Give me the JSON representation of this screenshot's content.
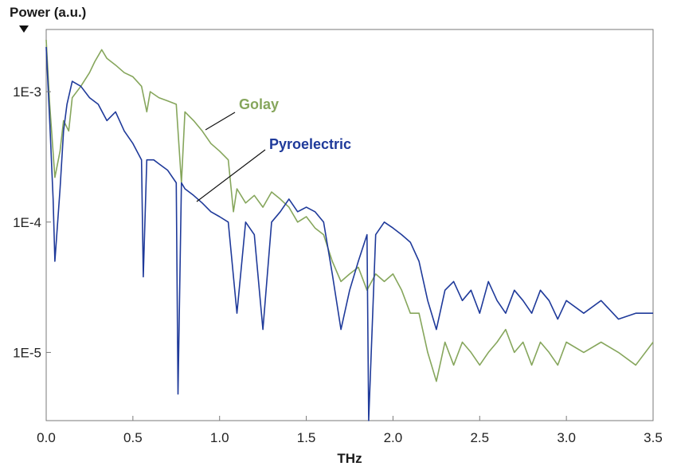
{
  "chart_data": {
    "type": "line",
    "title": "",
    "ylabel": "Power (a.u.)",
    "xlabel": "THz",
    "x_ticks": [
      "0.0",
      "0.5",
      "1.0",
      "1.5",
      "2.0",
      "2.5",
      "3.0",
      "3.5"
    ],
    "y_ticks": [
      "1E-3",
      "1E-4",
      "1E-5"
    ],
    "xlim": [
      0,
      3.5
    ],
    "ylim": [
      3e-06,
      0.003
    ],
    "y_scale": "log",
    "grid": false,
    "series": [
      {
        "name": "Golay",
        "color": "#86a65c",
        "points": [
          [
            0.0,
            0.0025
          ],
          [
            0.02,
            0.0008
          ],
          [
            0.05,
            0.00022
          ],
          [
            0.08,
            0.00035
          ],
          [
            0.1,
            0.0006
          ],
          [
            0.13,
            0.0005
          ],
          [
            0.15,
            0.0009
          ],
          [
            0.2,
            0.0011
          ],
          [
            0.25,
            0.0014
          ],
          [
            0.28,
            0.0017
          ],
          [
            0.32,
            0.0021
          ],
          [
            0.35,
            0.0018
          ],
          [
            0.4,
            0.0016
          ],
          [
            0.45,
            0.0014
          ],
          [
            0.5,
            0.0013
          ],
          [
            0.55,
            0.0011
          ],
          [
            0.58,
            0.0007
          ],
          [
            0.6,
            0.001
          ],
          [
            0.65,
            0.0009
          ],
          [
            0.7,
            0.00085
          ],
          [
            0.75,
            0.0008
          ],
          [
            0.78,
            0.0002
          ],
          [
            0.8,
            0.0007
          ],
          [
            0.85,
            0.0006
          ],
          [
            0.9,
            0.0005
          ],
          [
            0.95,
            0.0004
          ],
          [
            1.0,
            0.00035
          ],
          [
            1.05,
            0.0003
          ],
          [
            1.08,
            0.00012
          ],
          [
            1.1,
            0.00018
          ],
          [
            1.15,
            0.00014
          ],
          [
            1.2,
            0.00016
          ],
          [
            1.25,
            0.00013
          ],
          [
            1.3,
            0.00017
          ],
          [
            1.35,
            0.00015
          ],
          [
            1.4,
            0.00013
          ],
          [
            1.45,
            0.0001
          ],
          [
            1.5,
            0.00011
          ],
          [
            1.55,
            9e-05
          ],
          [
            1.6,
            8e-05
          ],
          [
            1.65,
            5e-05
          ],
          [
            1.7,
            3.5e-05
          ],
          [
            1.75,
            4e-05
          ],
          [
            1.8,
            4.5e-05
          ],
          [
            1.85,
            3e-05
          ],
          [
            1.9,
            4e-05
          ],
          [
            1.95,
            3.5e-05
          ],
          [
            2.0,
            4e-05
          ],
          [
            2.05,
            3e-05
          ],
          [
            2.1,
            2e-05
          ],
          [
            2.15,
            2e-05
          ],
          [
            2.2,
            1e-05
          ],
          [
            2.25,
            6e-06
          ],
          [
            2.3,
            1.2e-05
          ],
          [
            2.35,
            8e-06
          ],
          [
            2.4,
            1.2e-05
          ],
          [
            2.45,
            1e-05
          ],
          [
            2.5,
            8e-06
          ],
          [
            2.55,
            1e-05
          ],
          [
            2.6,
            1.2e-05
          ],
          [
            2.65,
            1.5e-05
          ],
          [
            2.7,
            1e-05
          ],
          [
            2.75,
            1.2e-05
          ],
          [
            2.8,
            8e-06
          ],
          [
            2.85,
            1.2e-05
          ],
          [
            2.9,
            1e-05
          ],
          [
            2.95,
            8e-06
          ],
          [
            3.0,
            1.2e-05
          ],
          [
            3.1,
            1e-05
          ],
          [
            3.2,
            1.2e-05
          ],
          [
            3.3,
            1e-05
          ],
          [
            3.4,
            8e-06
          ],
          [
            3.5,
            1.2e-05
          ]
        ]
      },
      {
        "name": "Pyroelectric",
        "color": "#1f3a9a",
        "points": [
          [
            0.0,
            0.0022
          ],
          [
            0.02,
            0.0006
          ],
          [
            0.04,
            0.00015
          ],
          [
            0.05,
            5e-05
          ],
          [
            0.08,
            0.00018
          ],
          [
            0.1,
            0.0005
          ],
          [
            0.12,
            0.0008
          ],
          [
            0.15,
            0.0012
          ],
          [
            0.2,
            0.0011
          ],
          [
            0.25,
            0.0009
          ],
          [
            0.3,
            0.0008
          ],
          [
            0.35,
            0.0006
          ],
          [
            0.4,
            0.0007
          ],
          [
            0.45,
            0.0005
          ],
          [
            0.5,
            0.0004
          ],
          [
            0.55,
            0.0003
          ],
          [
            0.56,
            3.8e-05
          ],
          [
            0.58,
            0.0003
          ],
          [
            0.62,
            0.0003
          ],
          [
            0.65,
            0.00028
          ],
          [
            0.7,
            0.00025
          ],
          [
            0.75,
            0.0002
          ],
          [
            0.76,
            4.8e-06
          ],
          [
            0.78,
            0.0002
          ],
          [
            0.8,
            0.00018
          ],
          [
            0.85,
            0.00016
          ],
          [
            0.9,
            0.00014
          ],
          [
            0.95,
            0.00012
          ],
          [
            1.0,
            0.00011
          ],
          [
            1.05,
            0.0001
          ],
          [
            1.1,
            2e-05
          ],
          [
            1.15,
            0.0001
          ],
          [
            1.2,
            8e-05
          ],
          [
            1.25,
            1.5e-05
          ],
          [
            1.3,
            0.0001
          ],
          [
            1.35,
            0.00012
          ],
          [
            1.4,
            0.00015
          ],
          [
            1.45,
            0.00012
          ],
          [
            1.5,
            0.00013
          ],
          [
            1.55,
            0.00012
          ],
          [
            1.6,
            0.0001
          ],
          [
            1.65,
            4e-05
          ],
          [
            1.7,
            1.5e-05
          ],
          [
            1.75,
            3e-05
          ],
          [
            1.8,
            5e-05
          ],
          [
            1.85,
            8e-05
          ],
          [
            1.86,
            3e-06
          ],
          [
            1.9,
            8e-05
          ],
          [
            1.95,
            0.0001
          ],
          [
            2.0,
            9e-05
          ],
          [
            2.05,
            8e-05
          ],
          [
            2.1,
            7e-05
          ],
          [
            2.15,
            5e-05
          ],
          [
            2.2,
            2.5e-05
          ],
          [
            2.25,
            1.5e-05
          ],
          [
            2.3,
            3e-05
          ],
          [
            2.35,
            3.5e-05
          ],
          [
            2.4,
            2.5e-05
          ],
          [
            2.45,
            3e-05
          ],
          [
            2.5,
            2e-05
          ],
          [
            2.55,
            3.5e-05
          ],
          [
            2.6,
            2.5e-05
          ],
          [
            2.65,
            2e-05
          ],
          [
            2.7,
            3e-05
          ],
          [
            2.75,
            2.5e-05
          ],
          [
            2.8,
            2e-05
          ],
          [
            2.85,
            3e-05
          ],
          [
            2.9,
            2.5e-05
          ],
          [
            2.95,
            1.8e-05
          ],
          [
            3.0,
            2.5e-05
          ],
          [
            3.1,
            2e-05
          ],
          [
            3.2,
            2.5e-05
          ],
          [
            3.3,
            1.8e-05
          ],
          [
            3.4,
            2e-05
          ],
          [
            3.5,
            2e-05
          ]
        ]
      }
    ]
  }
}
